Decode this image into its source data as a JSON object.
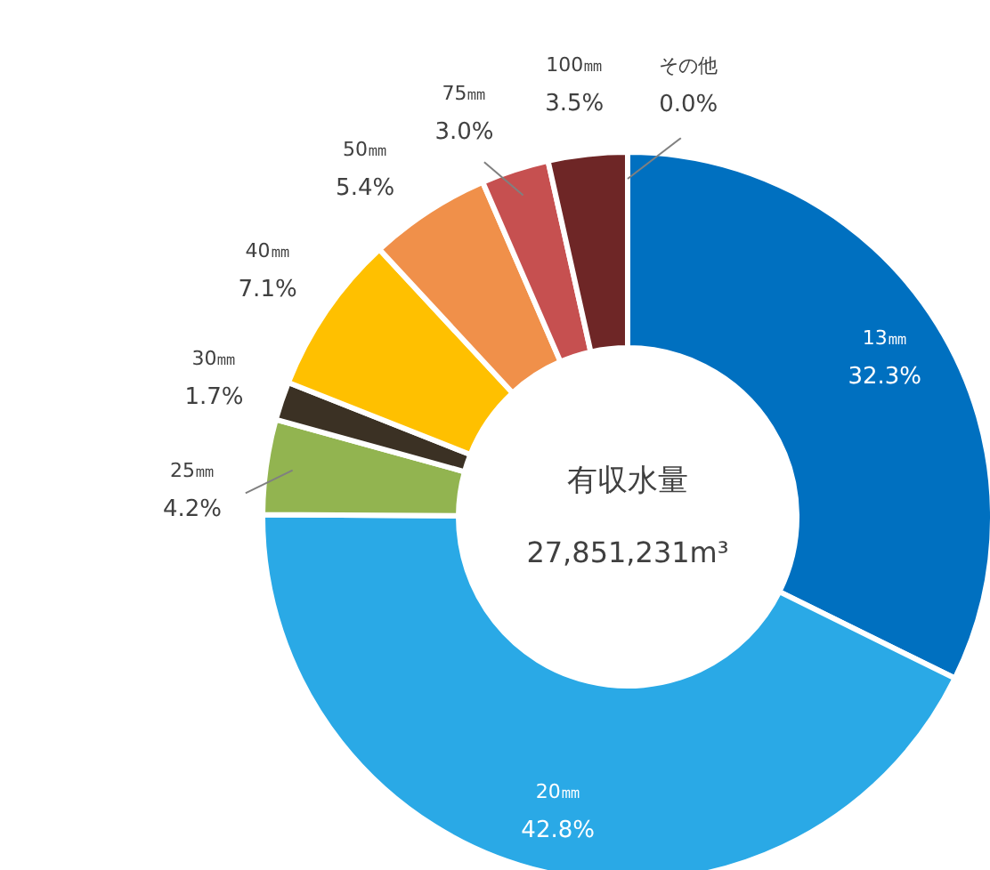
{
  "chart_data": {
    "type": "donut",
    "title": "有収水量",
    "subtitle": "27,851,231m³",
    "categories": [
      "13㎜",
      "20㎜",
      "25㎜",
      "30㎜",
      "40㎜",
      "50㎜",
      "75㎜",
      "100㎜",
      "その他"
    ],
    "values": [
      32.3,
      42.8,
      4.2,
      1.7,
      7.1,
      5.4,
      3.0,
      3.5,
      0.0
    ],
    "colors": [
      "#0070c0",
      "#2aa9e6",
      "#92b450",
      "#3b3124",
      "#ffc000",
      "#f0904a",
      "#c65050",
      "#6e2626",
      "#808080"
    ],
    "value_labels": [
      "32.3%",
      "42.8%",
      "4.2%",
      "1.7%",
      "7.1%",
      "5.4%",
      "3.0%",
      "3.5%",
      "0.0%"
    ]
  }
}
